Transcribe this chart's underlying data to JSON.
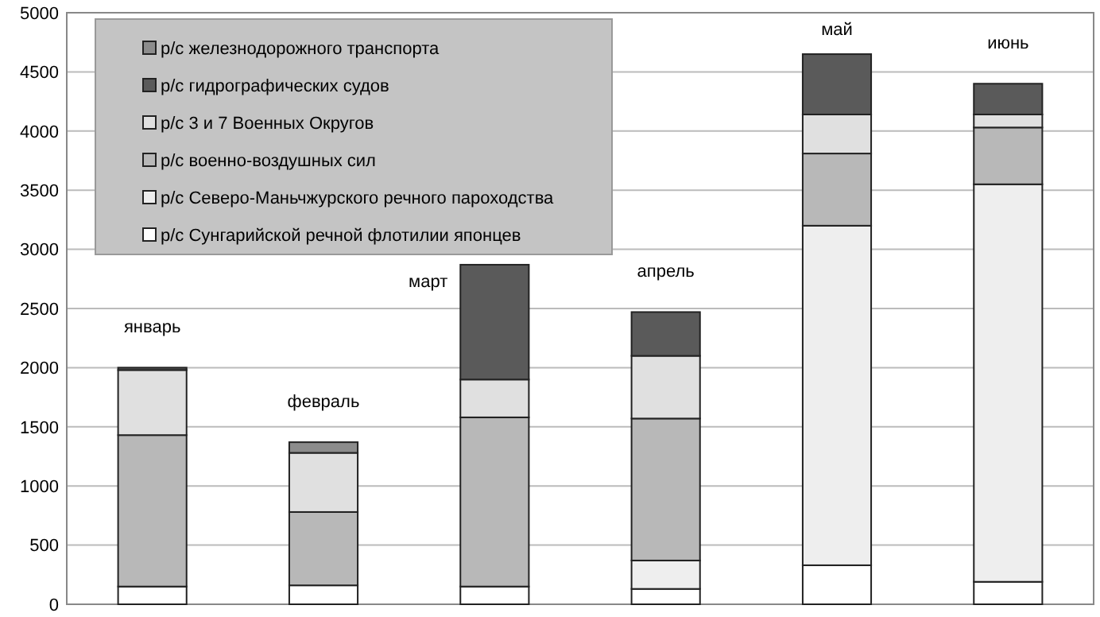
{
  "chart_data": {
    "type": "bar",
    "stacked": true,
    "categories": [
      "январь",
      "февраль",
      "март",
      "апрель",
      "май",
      "июнь"
    ],
    "series": [
      {
        "name": "р/с Сунгарийской речной флотилии японцев",
        "color": "#ffffff",
        "values": [
          150,
          160,
          150,
          130,
          330,
          190
        ]
      },
      {
        "name": "р/с Северо-Маньчжурского речного пароходства",
        "color": "#eeeeee",
        "values": [
          0,
          0,
          0,
          240,
          2870,
          3360
        ]
      },
      {
        "name": "р/с военно-воздушных сил",
        "color": "#b8b8b8",
        "values": [
          1280,
          620,
          1430,
          1200,
          610,
          480
        ]
      },
      {
        "name": "р/с 3 и 7 Военных Округов",
        "color": "#e0e0e0",
        "values": [
          550,
          500,
          320,
          530,
          330,
          110
        ]
      },
      {
        "name": "р/с гидрографических судов",
        "color": "#5a5a5a",
        "values": [
          20,
          0,
          970,
          370,
          510,
          260
        ]
      },
      {
        "name": "р/с железнодорожного транспорта",
        "color": "#8c8c8c",
        "values": [
          0,
          90,
          0,
          0,
          0,
          0
        ]
      }
    ],
    "ylim": [
      0,
      5000
    ],
    "yticks": [
      0,
      500,
      1000,
      1500,
      2000,
      2500,
      3000,
      3500,
      4000,
      4500,
      5000
    ],
    "grid": "y",
    "legend": "top left"
  }
}
